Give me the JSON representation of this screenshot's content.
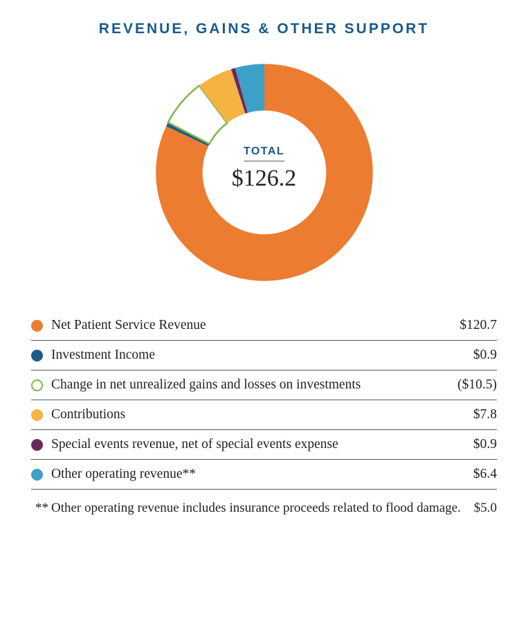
{
  "title": "REVENUE, GAINS & OTHER SUPPORT",
  "chart": {
    "type": "donut",
    "center_label": "TOTAL",
    "center_value": "$126.2",
    "inner_radius_ratio": 0.57,
    "start_angle_deg": 0,
    "background_color": "#ffffff",
    "title_color": "#1a5a8a",
    "title_fontsize": 21,
    "center_label_fontsize": 16,
    "center_value_fontsize": 34,
    "slices": [
      {
        "label": "Net Patient Service Revenue",
        "value_text": "$120.7",
        "abs_value": 120.7,
        "color": "#ec7c30",
        "fill": "solid"
      },
      {
        "label": "Investment Income",
        "value_text": "$0.9",
        "abs_value": 0.9,
        "color": "#1f5a8a",
        "fill": "solid"
      },
      {
        "label": "Change in net unrealized gains and losses on investments",
        "value_text": "($10.5)",
        "abs_value": 10.5,
        "color": "#7fb648",
        "fill": "outline"
      },
      {
        "label": "Contributions",
        "value_text": "$7.8",
        "abs_value": 7.8,
        "color": "#f5b342",
        "fill": "solid"
      },
      {
        "label": "Special events revenue, net of special events expense",
        "value_text": "$0.9",
        "abs_value": 0.9,
        "color": "#6a2a5e",
        "fill": "solid"
      },
      {
        "label": "Other operating revenue**",
        "value_text": "$6.4",
        "abs_value": 6.4,
        "color": "#3ca0c8",
        "fill": "solid"
      }
    ]
  },
  "legend": {
    "label_fontsize": 19.5,
    "border_color": "#555555",
    "swatch_radius": 8.5
  },
  "footnote": {
    "mark": "**",
    "text": "Other operating revenue includes insurance proceeds related to flood damage.",
    "value": "$5.0",
    "fontsize": 19
  }
}
